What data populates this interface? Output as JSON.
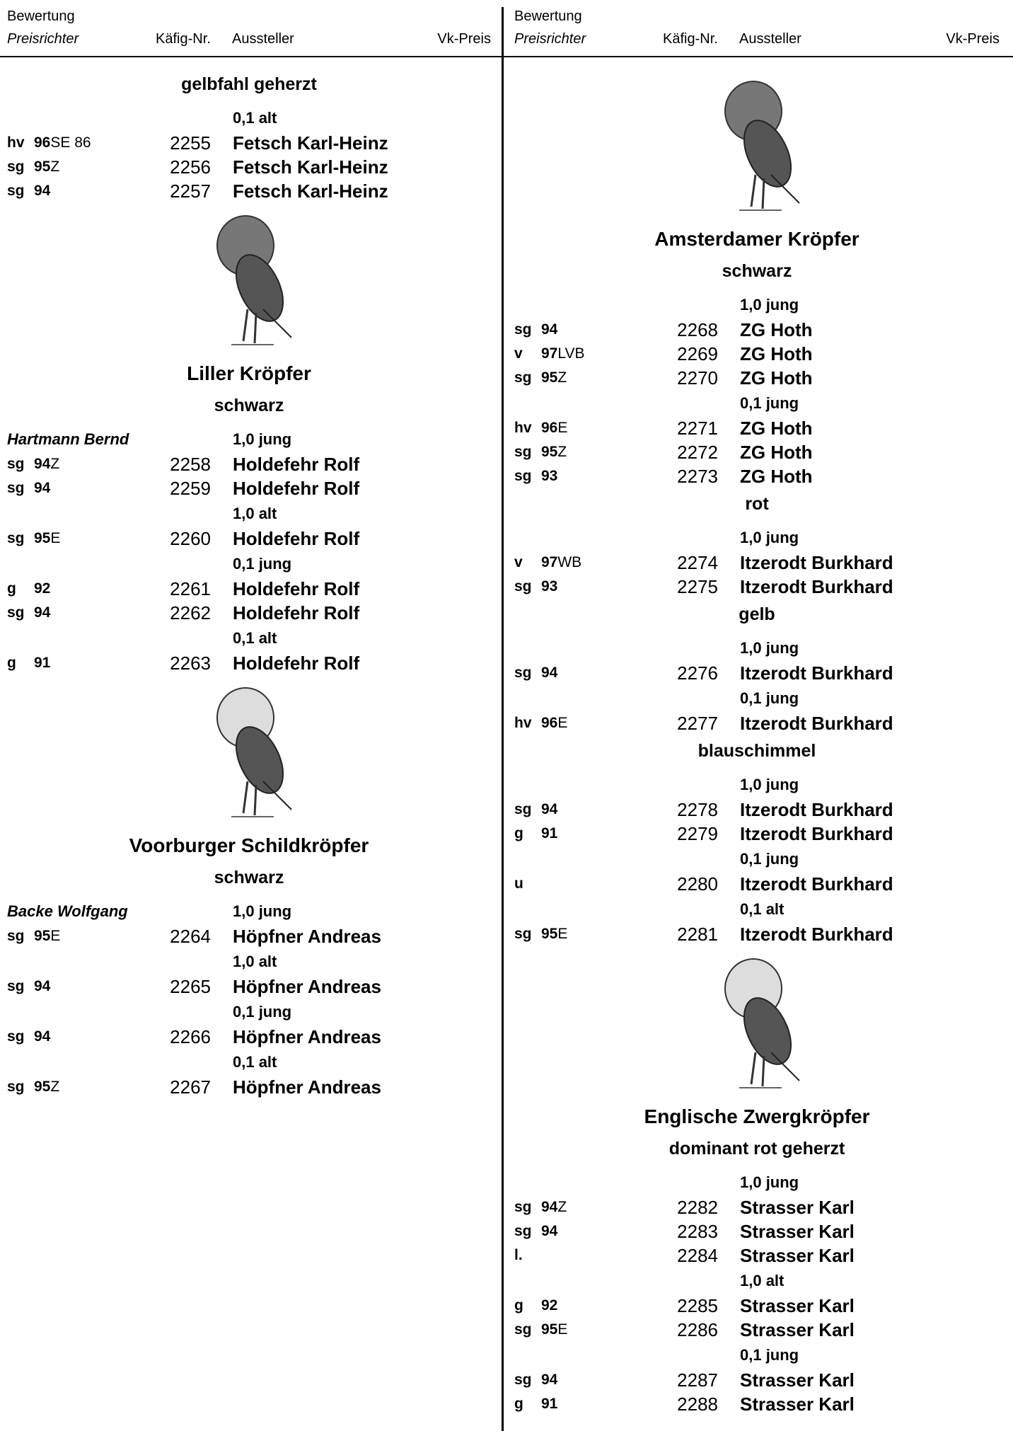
{
  "columns": [
    {
      "header": {
        "rating": "Bewertung",
        "judge": "Preisrichter",
        "cage": "Käfig-Nr.",
        "exhibitor": "Aussteller",
        "price": "Vk-Preis"
      },
      "items": [
        {
          "kind": "color",
          "text": "gelbfahl geherzt"
        },
        {
          "kind": "class",
          "text": "0,1 alt"
        },
        {
          "kind": "entry",
          "grade": "hv",
          "score": 96,
          "award": "SE 86",
          "cage": 2255,
          "exhibitor": "Fetsch Karl-Heinz"
        },
        {
          "kind": "entry",
          "grade": "sg",
          "score": 95,
          "award": "Z",
          "cage": 2256,
          "exhibitor": "Fetsch Karl-Heinz"
        },
        {
          "kind": "entry",
          "grade": "sg",
          "score": 94,
          "cage": 2257,
          "exhibitor": "Fetsch Karl-Heinz"
        },
        {
          "kind": "image"
        },
        {
          "kind": "breed",
          "text": "Liller Kröpfer"
        },
        {
          "kind": "color",
          "text": "schwarz"
        },
        {
          "kind": "class",
          "judge": "Hartmann Bernd",
          "text": "1,0 jung"
        },
        {
          "kind": "entry",
          "grade": "sg",
          "score": 94,
          "award": "Z",
          "cage": 2258,
          "exhibitor": "Holdefehr Rolf"
        },
        {
          "kind": "entry",
          "grade": "sg",
          "score": 94,
          "cage": 2259,
          "exhibitor": "Holdefehr Rolf"
        },
        {
          "kind": "class",
          "text": "1,0 alt"
        },
        {
          "kind": "entry",
          "grade": "sg",
          "score": 95,
          "award": "E",
          "cage": 2260,
          "exhibitor": "Holdefehr Rolf"
        },
        {
          "kind": "class",
          "text": "0,1 jung"
        },
        {
          "kind": "entry",
          "grade": "g",
          "score": 92,
          "cage": 2261,
          "exhibitor": "Holdefehr Rolf"
        },
        {
          "kind": "entry",
          "grade": "sg",
          "score": 94,
          "cage": 2262,
          "exhibitor": "Holdefehr Rolf"
        },
        {
          "kind": "class",
          "text": "0,1 alt"
        },
        {
          "kind": "entry",
          "grade": "g",
          "score": 91,
          "cage": 2263,
          "exhibitor": "Holdefehr Rolf"
        },
        {
          "kind": "image"
        },
        {
          "kind": "breed",
          "text": "Voorburger Schildkröpfer"
        },
        {
          "kind": "color",
          "text": "schwarz"
        },
        {
          "kind": "class",
          "judge": "Backe Wolfgang",
          "text": "1,0 jung"
        },
        {
          "kind": "entry",
          "grade": "sg",
          "score": 95,
          "award": "E",
          "cage": 2264,
          "exhibitor": "Höpfner Andreas"
        },
        {
          "kind": "class",
          "text": "1,0 alt"
        },
        {
          "kind": "entry",
          "grade": "sg",
          "score": 94,
          "cage": 2265,
          "exhibitor": "Höpfner Andreas"
        },
        {
          "kind": "class",
          "text": "0,1 jung"
        },
        {
          "kind": "entry",
          "grade": "sg",
          "score": 94,
          "cage": 2266,
          "exhibitor": "Höpfner Andreas"
        },
        {
          "kind": "class",
          "text": "0,1 alt"
        },
        {
          "kind": "entry",
          "grade": "sg",
          "score": 95,
          "award": "Z",
          "cage": 2267,
          "exhibitor": "Höpfner Andreas"
        }
      ]
    },
    {
      "header": {
        "rating": "Bewertung",
        "judge": "Preisrichter",
        "cage": "Käfig-Nr.",
        "exhibitor": "Aussteller",
        "price": "Vk-Preis"
      },
      "items": [
        {
          "kind": "image"
        },
        {
          "kind": "breed",
          "text": "Amsterdamer Kröpfer"
        },
        {
          "kind": "color",
          "text": "schwarz"
        },
        {
          "kind": "class",
          "text": "1,0 jung"
        },
        {
          "kind": "entry",
          "grade": "sg",
          "score": 94,
          "cage": 2268,
          "exhibitor": "ZG Hoth"
        },
        {
          "kind": "entry",
          "grade": "v",
          "score": 97,
          "award": "LVB",
          "cage": 2269,
          "exhibitor": "ZG Hoth"
        },
        {
          "kind": "entry",
          "grade": "sg",
          "score": 95,
          "award": "Z",
          "cage": 2270,
          "exhibitor": "ZG Hoth"
        },
        {
          "kind": "class",
          "text": "0,1 jung"
        },
        {
          "kind": "entry",
          "grade": "hv",
          "score": 96,
          "award": "E",
          "cage": 2271,
          "exhibitor": "ZG Hoth"
        },
        {
          "kind": "entry",
          "grade": "sg",
          "score": 95,
          "award": "Z",
          "cage": 2272,
          "exhibitor": "ZG Hoth"
        },
        {
          "kind": "entry",
          "grade": "sg",
          "score": 93,
          "cage": 2273,
          "exhibitor": "ZG Hoth"
        },
        {
          "kind": "color",
          "text": "rot"
        },
        {
          "kind": "class",
          "text": "1,0 jung"
        },
        {
          "kind": "entry",
          "grade": "v",
          "score": 97,
          "award": "WB",
          "cage": 2274,
          "exhibitor": "Itzerodt Burkhard"
        },
        {
          "kind": "entry",
          "grade": "sg",
          "score": 93,
          "cage": 2275,
          "exhibitor": "Itzerodt Burkhard"
        },
        {
          "kind": "color",
          "text": "gelb"
        },
        {
          "kind": "class",
          "text": "1,0 jung"
        },
        {
          "kind": "entry",
          "grade": "sg",
          "score": 94,
          "cage": 2276,
          "exhibitor": "Itzerodt Burkhard"
        },
        {
          "kind": "class",
          "text": "0,1 jung"
        },
        {
          "kind": "entry",
          "grade": "hv",
          "score": 96,
          "award": "E",
          "cage": 2277,
          "exhibitor": "Itzerodt Burkhard"
        },
        {
          "kind": "color",
          "text": "blauschimmel"
        },
        {
          "kind": "class",
          "text": "1,0 jung"
        },
        {
          "kind": "entry",
          "grade": "sg",
          "score": 94,
          "cage": 2278,
          "exhibitor": "Itzerodt Burkhard"
        },
        {
          "kind": "entry",
          "grade": "g",
          "score": 91,
          "cage": 2279,
          "exhibitor": "Itzerodt Burkhard"
        },
        {
          "kind": "class",
          "text": "0,1 jung"
        },
        {
          "kind": "entry",
          "grade": "u",
          "cage": 2280,
          "exhibitor": "Itzerodt Burkhard"
        },
        {
          "kind": "class",
          "text": "0,1 alt"
        },
        {
          "kind": "entry",
          "grade": "sg",
          "score": 95,
          "award": "E",
          "cage": 2281,
          "exhibitor": "Itzerodt Burkhard"
        },
        {
          "kind": "image"
        },
        {
          "kind": "breed",
          "text": "Englische Zwergkröpfer"
        },
        {
          "kind": "color",
          "text": "dominant rot geherzt"
        },
        {
          "kind": "class",
          "text": "1,0 jung"
        },
        {
          "kind": "entry",
          "grade": "sg",
          "score": 94,
          "award": "Z",
          "cage": 2282,
          "exhibitor": "Strasser Karl"
        },
        {
          "kind": "entry",
          "grade": "sg",
          "score": 94,
          "cage": 2283,
          "exhibitor": "Strasser Karl"
        },
        {
          "kind": "entry",
          "grade": "l.",
          "cage": 2284,
          "exhibitor": "Strasser Karl"
        },
        {
          "kind": "class",
          "text": "1,0 alt"
        },
        {
          "kind": "entry",
          "grade": "g",
          "score": 92,
          "cage": 2285,
          "exhibitor": "Strasser Karl"
        },
        {
          "kind": "entry",
          "grade": "sg",
          "score": 95,
          "award": "E",
          "cage": 2286,
          "exhibitor": "Strasser Karl"
        },
        {
          "kind": "class",
          "text": "0,1 jung"
        },
        {
          "kind": "entry",
          "grade": "sg",
          "score": 94,
          "cage": 2287,
          "exhibitor": "Strasser Karl"
        },
        {
          "kind": "entry",
          "grade": "g",
          "score": 91,
          "cage": 2288,
          "exhibitor": "Strasser Karl"
        }
      ]
    }
  ]
}
